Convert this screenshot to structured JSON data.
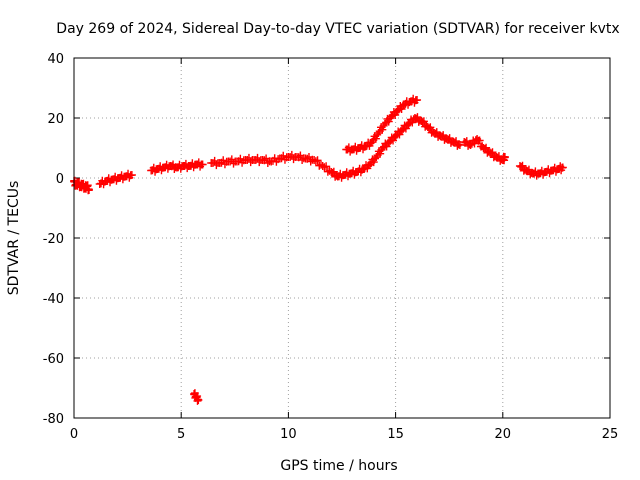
{
  "chart_data": {
    "type": "scatter",
    "title": "Day 269 of 2024, Sidereal Day-to-day VTEC variation (SDTVAR) for receiver kvtx",
    "xlabel": "GPS time / hours",
    "ylabel": "SDTVAR / TECUs",
    "xlim": [
      0,
      25
    ],
    "ylim": [
      -80,
      40
    ],
    "xticks": [
      0,
      5,
      10,
      15,
      20,
      25
    ],
    "yticks": [
      -80,
      -60,
      -40,
      -20,
      0,
      20,
      40
    ],
    "xtick_labels": [
      "0",
      "5",
      "10",
      "15",
      "20",
      "25"
    ],
    "ytick_labels": [
      "-80",
      "-60",
      "-40",
      "-20",
      "0",
      "20",
      "40"
    ],
    "grid": true,
    "marker": "plus",
    "color": "#ff0000",
    "series": [
      {
        "name": "SDTVAR",
        "segments": [
          [
            [
              0.0,
              -1.0
            ],
            [
              0.1,
              -2.5
            ],
            [
              0.2,
              -1.5
            ],
            [
              0.3,
              -3.0
            ],
            [
              0.4,
              -2.0
            ],
            [
              0.5,
              -3.5
            ],
            [
              0.6,
              -2.5
            ],
            [
              0.7,
              -4.0
            ]
          ],
          [
            [
              1.2,
              -2.0
            ],
            [
              1.5,
              -1.0
            ],
            [
              1.8,
              -0.5
            ],
            [
              2.1,
              0.0
            ],
            [
              2.4,
              0.5
            ],
            [
              2.7,
              1.0
            ]
          ],
          [
            [
              3.6,
              2.5
            ],
            [
              3.9,
              3.0
            ],
            [
              4.2,
              3.5
            ],
            [
              4.5,
              4.0
            ],
            [
              4.8,
              3.5
            ],
            [
              5.1,
              4.0
            ],
            [
              5.4,
              4.0
            ],
            [
              5.7,
              4.5
            ],
            [
              6.0,
              4.5
            ]
          ],
          [
            [
              6.4,
              5.0
            ],
            [
              6.8,
              5.0
            ],
            [
              7.2,
              5.5
            ],
            [
              7.6,
              5.5
            ],
            [
              8.0,
              6.0
            ],
            [
              8.4,
              6.0
            ],
            [
              8.8,
              6.0
            ],
            [
              9.2,
              5.5
            ],
            [
              9.6,
              6.5
            ],
            [
              10.0,
              7.0
            ],
            [
              10.4,
              7.0
            ],
            [
              10.8,
              6.5
            ],
            [
              11.2,
              6.0
            ],
            [
              11.6,
              4.0
            ],
            [
              12.0,
              2.0
            ],
            [
              12.3,
              0.5
            ],
            [
              12.6,
              1.0
            ],
            [
              12.9,
              1.5
            ],
            [
              13.2,
              2.0
            ],
            [
              13.5,
              3.0
            ],
            [
              13.8,
              4.5
            ],
            [
              14.1,
              7.0
            ],
            [
              14.4,
              10.0
            ],
            [
              14.7,
              12.0
            ],
            [
              15.0,
              14.0
            ],
            [
              15.3,
              16.0
            ],
            [
              15.6,
              18.0
            ],
            [
              15.9,
              20.0
            ],
            [
              16.2,
              19.0
            ],
            [
              16.5,
              17.0
            ],
            [
              16.8,
              15.0
            ],
            [
              17.1,
              14.0
            ],
            [
              17.4,
              13.0
            ],
            [
              17.7,
              12.0
            ],
            [
              18.0,
              11.0
            ]
          ],
          [
            [
              12.7,
              9.5
            ],
            [
              13.0,
              9.5
            ],
            [
              13.3,
              10.0
            ],
            [
              13.6,
              10.5
            ],
            [
              13.9,
              12.0
            ],
            [
              14.2,
              15.0
            ],
            [
              14.5,
              18.0
            ],
            [
              14.8,
              20.5
            ],
            [
              15.1,
              22.5
            ],
            [
              15.4,
              24.5
            ],
            [
              15.7,
              25.5
            ],
            [
              16.0,
              26.0
            ]
          ],
          [
            [
              18.2,
              12.0
            ],
            [
              18.5,
              11.0
            ],
            [
              18.8,
              13.0
            ],
            [
              19.1,
              10.0
            ],
            [
              19.4,
              8.5
            ],
            [
              19.7,
              7.0
            ],
            [
              20.0,
              6.0
            ],
            [
              20.1,
              7.0
            ]
          ],
          [
            [
              20.8,
              4.0
            ],
            [
              21.1,
              2.5
            ],
            [
              21.4,
              1.5
            ],
            [
              21.7,
              1.5
            ],
            [
              22.0,
              2.0
            ],
            [
              22.3,
              2.5
            ],
            [
              22.6,
              3.0
            ],
            [
              22.8,
              3.5
            ]
          ],
          [
            [
              5.6,
              -72.0
            ],
            [
              5.7,
              -73.0
            ],
            [
              5.8,
              -74.0
            ]
          ]
        ]
      }
    ]
  }
}
